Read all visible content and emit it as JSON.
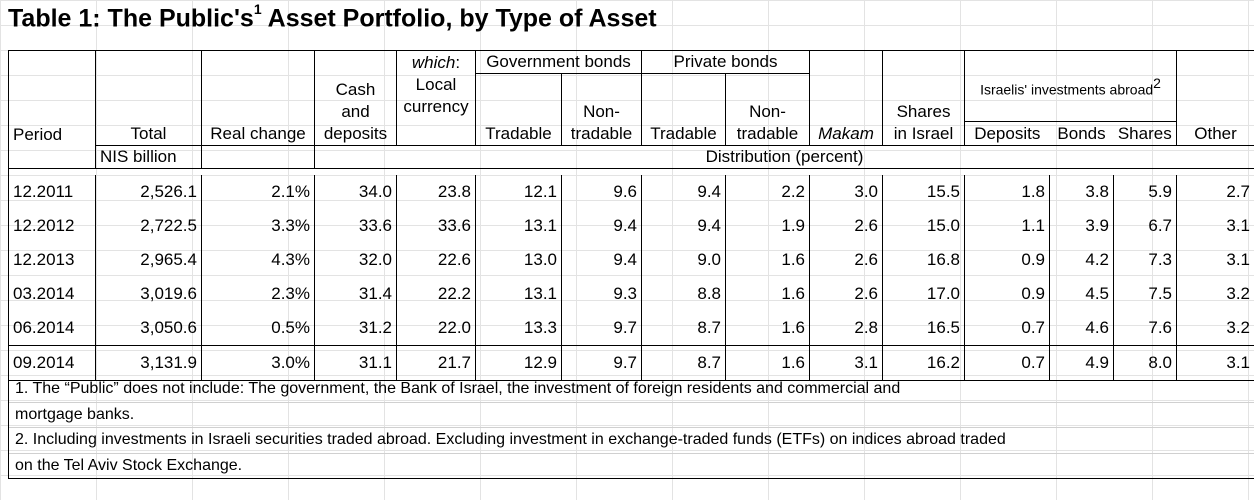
{
  "title": {
    "text": "Table 1: The Public's",
    "sup": "1",
    "rest": " Asset Portfolio, by Type of Asset"
  },
  "headers": {
    "period": "Period",
    "total": "Total",
    "real_change": "Real change",
    "cash_l1": "Cash",
    "cash_l2": "and",
    "cash_l3": "deposits",
    "which": "which",
    "which_colon": ":",
    "local_l1": "Local",
    "local_l2": "currency",
    "gov_bonds": "Government bonds",
    "private_bonds": "Private bonds",
    "tradable": "Tradable",
    "non_l1": "Non-",
    "non_l2": "tradable",
    "makam": "Makam",
    "shares_l1": "Shares",
    "shares_l2": "in Israel",
    "abroad": "Israelis' investments abroad",
    "abroad_sup": "2",
    "deposits": "Deposits",
    "bonds": "Bonds",
    "shares": "Shares",
    "other": "Other",
    "unit_total": "NIS billion",
    "unit_dist": "Distribution (percent)"
  },
  "rows": [
    [
      "12.2011",
      "2,526.1",
      "2.1%",
      "34.0",
      "23.8",
      "12.1",
      "9.6",
      "9.4",
      "2.2",
      "3.0",
      "15.5",
      "1.8",
      "3.8",
      "5.9",
      "2.7"
    ],
    [
      "12.2012",
      "2,722.5",
      "3.3%",
      "33.6",
      "33.6",
      "13.1",
      "9.4",
      "9.4",
      "1.9",
      "2.6",
      "15.0",
      "1.1",
      "3.9",
      "6.7",
      "3.1"
    ],
    [
      "12.2013",
      "2,965.4",
      "4.3%",
      "32.0",
      "22.6",
      "13.0",
      "9.4",
      "9.0",
      "1.6",
      "2.6",
      "16.8",
      "0.9",
      "4.2",
      "7.3",
      "3.1"
    ],
    [
      "03.2014",
      "3,019.6",
      "2.3%",
      "31.4",
      "22.2",
      "13.1",
      "9.3",
      "8.8",
      "1.6",
      "2.6",
      "17.0",
      "0.9",
      "4.5",
      "7.5",
      "3.2"
    ],
    [
      "06.2014",
      "3,050.6",
      "0.5%",
      "31.2",
      "22.0",
      "13.3",
      "9.7",
      "8.7",
      "1.6",
      "2.8",
      "16.5",
      "0.7",
      "4.6",
      "7.6",
      "3.2"
    ],
    [
      "09.2014",
      "3,131.9",
      "3.0%",
      "31.1",
      "21.7",
      "12.9",
      "9.7",
      "8.7",
      "1.6",
      "3.1",
      "16.2",
      "0.7",
      "4.9",
      "8.0",
      "3.1"
    ]
  ],
  "notes": {
    "n1_a": "1. The “Public” does not include: The government,  the Bank of Israel, the investment of foreign residents and commercial and",
    "n1_b": "mortgage banks.",
    "n2_a": "2. Including investments in Israeli securities traded abroad. Excluding investment in exchange-traded funds (ETFs) on indices abroad traded",
    "n2_b": "on the Tel Aviv Stock Exchange."
  }
}
